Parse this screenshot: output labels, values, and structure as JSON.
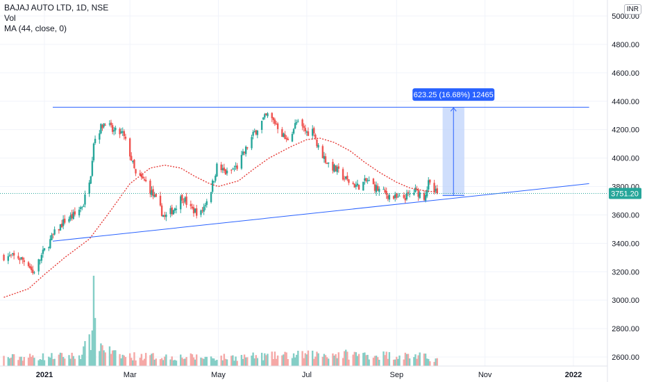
{
  "header": {
    "title": "BAJAJ AUTO LTD, 1D, NSE",
    "indicator_vol": "Vol",
    "indicator_ma": "MA (44, close, 0)",
    "currency": "INR"
  },
  "annotations": {
    "measure_label": "623.25 (16.68%) 12465",
    "last_price_label": "3751.20"
  },
  "colors": {
    "up": "#26a69a",
    "down": "#ef5350",
    "vol_up": "#84cec6",
    "vol_down": "#f5a8a6",
    "ma": "#e53935",
    "trendline": "#2962ff",
    "measure_fill": "#bbd0fb",
    "measure_label_bg": "#2962ff",
    "last_price": "#26a69a",
    "grid": "#f0f3fa"
  },
  "chart_data": {
    "type": "candlestick",
    "title": "BAJAJ AUTO LTD, 1D, NSE",
    "y_axis": {
      "ticks": [
        5000,
        4800,
        4600,
        4400,
        4200,
        4000,
        3800,
        3600,
        3400,
        3200,
        3000,
        2800,
        2600
      ],
      "tick_labels": [
        "5000.00",
        "4800.00",
        "4600.00",
        "4400.00",
        "4200.00",
        "4000.00",
        "3800.00",
        "3600.00",
        "3400.00",
        "3200.00",
        "3000.00",
        "2800.00",
        "2600.00"
      ],
      "range": [
        2550,
        5050
      ],
      "unit": "INR"
    },
    "x_axis": {
      "tick_labels": [
        "2021",
        "Mar",
        "May",
        "Jul",
        "Sep",
        "Nov",
        "2022"
      ],
      "tick_dates": [
        "2021-01-01",
        "2021-03-01",
        "2021-05-01",
        "2021-07-01",
        "2021-09-01",
        "2021-11-01",
        "2022-01-01"
      ],
      "range": [
        "2020-12-04",
        "2022-01-31"
      ]
    },
    "grid": true,
    "price_path": [
      [
        "2020-12-04",
        3310
      ],
      [
        "2020-12-14",
        3300
      ],
      [
        "2020-12-21",
        3260
      ],
      [
        "2020-12-24",
        3190
      ],
      [
        "2021-01-01",
        3350
      ],
      [
        "2021-01-08",
        3470
      ],
      [
        "2021-01-15",
        3560
      ],
      [
        "2021-01-22",
        3600
      ],
      [
        "2021-01-28",
        3680
      ],
      [
        "2021-02-02",
        3900
      ],
      [
        "2021-02-04",
        4120
      ],
      [
        "2021-02-08",
        4200
      ],
      [
        "2021-02-12",
        4260
      ],
      [
        "2021-02-17",
        4190
      ],
      [
        "2021-02-24",
        4170
      ],
      [
        "2021-03-01",
        4030
      ],
      [
        "2021-03-05",
        3880
      ],
      [
        "2021-03-12",
        3830
      ],
      [
        "2021-03-19",
        3700
      ],
      [
        "2021-03-25",
        3580
      ],
      [
        "2021-03-31",
        3640
      ],
      [
        "2021-04-06",
        3730
      ],
      [
        "2021-04-12",
        3640
      ],
      [
        "2021-04-19",
        3610
      ],
      [
        "2021-04-26",
        3780
      ],
      [
        "2021-04-30",
        3940
      ],
      [
        "2021-05-07",
        3890
      ],
      [
        "2021-05-14",
        3940
      ],
      [
        "2021-05-20",
        4060
      ],
      [
        "2021-05-26",
        4180
      ],
      [
        "2021-06-01",
        4270
      ],
      [
        "2021-06-04",
        4300
      ],
      [
        "2021-06-10",
        4240
      ],
      [
        "2021-06-17",
        4120
      ],
      [
        "2021-06-24",
        4250
      ],
      [
        "2021-07-01",
        4180
      ],
      [
        "2021-07-06",
        4200
      ],
      [
        "2021-07-08",
        4090
      ],
      [
        "2021-07-15",
        3970
      ],
      [
        "2021-07-22",
        3910
      ],
      [
        "2021-07-29",
        3840
      ],
      [
        "2021-08-05",
        3800
      ],
      [
        "2021-08-12",
        3840
      ],
      [
        "2021-08-19",
        3780
      ],
      [
        "2021-08-26",
        3740
      ],
      [
        "2021-09-02",
        3710
      ],
      [
        "2021-09-08",
        3730
      ],
      [
        "2021-09-14",
        3770
      ],
      [
        "2021-09-20",
        3730
      ],
      [
        "2021-09-23",
        3820
      ],
      [
        "2021-09-27",
        3760
      ],
      [
        "2021-09-29",
        3751.2
      ]
    ],
    "volume_path": [
      [
        "2020-12-04",
        0.1
      ],
      [
        "2021-01-25",
        0.12
      ],
      [
        "2021-02-02",
        0.3
      ],
      [
        "2021-02-04",
        0.95
      ],
      [
        "2021-02-06",
        0.28
      ],
      [
        "2021-02-20",
        0.12
      ],
      [
        "2021-05-01",
        0.1
      ],
      [
        "2021-07-20",
        0.14
      ],
      [
        "2021-09-15",
        0.12
      ],
      [
        "2021-09-29",
        0.08
      ]
    ],
    "moving_average": {
      "name": "MA (44, close, 0)",
      "points": [
        [
          "2020-12-04",
          3020
        ],
        [
          "2020-12-21",
          3080
        ],
        [
          "2021-01-01",
          3180
        ],
        [
          "2021-01-15",
          3300
        ],
        [
          "2021-02-01",
          3430
        ],
        [
          "2021-02-15",
          3620
        ],
        [
          "2021-03-01",
          3820
        ],
        [
          "2021-03-15",
          3930
        ],
        [
          "2021-03-25",
          3950
        ],
        [
          "2021-04-05",
          3930
        ],
        [
          "2021-04-15",
          3870
        ],
        [
          "2021-04-25",
          3820
        ],
        [
          "2021-05-01",
          3800
        ],
        [
          "2021-05-15",
          3840
        ],
        [
          "2021-05-25",
          3920
        ],
        [
          "2021-06-05",
          4000
        ],
        [
          "2021-06-20",
          4080
        ],
        [
          "2021-07-01",
          4130
        ],
        [
          "2021-07-10",
          4140
        ],
        [
          "2021-07-20",
          4110
        ],
        [
          "2021-07-31",
          4050
        ],
        [
          "2021-08-10",
          3970
        ],
        [
          "2021-08-20",
          3900
        ],
        [
          "2021-09-01",
          3830
        ],
        [
          "2021-09-10",
          3790
        ],
        [
          "2021-09-20",
          3770
        ],
        [
          "2021-09-29",
          3760
        ]
      ]
    },
    "drawings": {
      "resistance_line": {
        "from": [
          "2021-01-01",
          4358
        ],
        "to": [
          "2022-01-31",
          4358
        ]
      },
      "support_line": {
        "from": [
          "2021-01-01",
          3415
        ],
        "to": [
          "2022-01-31",
          3820
        ]
      },
      "measure": {
        "from": [
          "2021-09-27",
          3736
        ],
        "to": [
          "2021-10-12",
          4359
        ],
        "label": "623.25 (16.68%) 12465"
      }
    },
    "last_price": 3751.2
  }
}
